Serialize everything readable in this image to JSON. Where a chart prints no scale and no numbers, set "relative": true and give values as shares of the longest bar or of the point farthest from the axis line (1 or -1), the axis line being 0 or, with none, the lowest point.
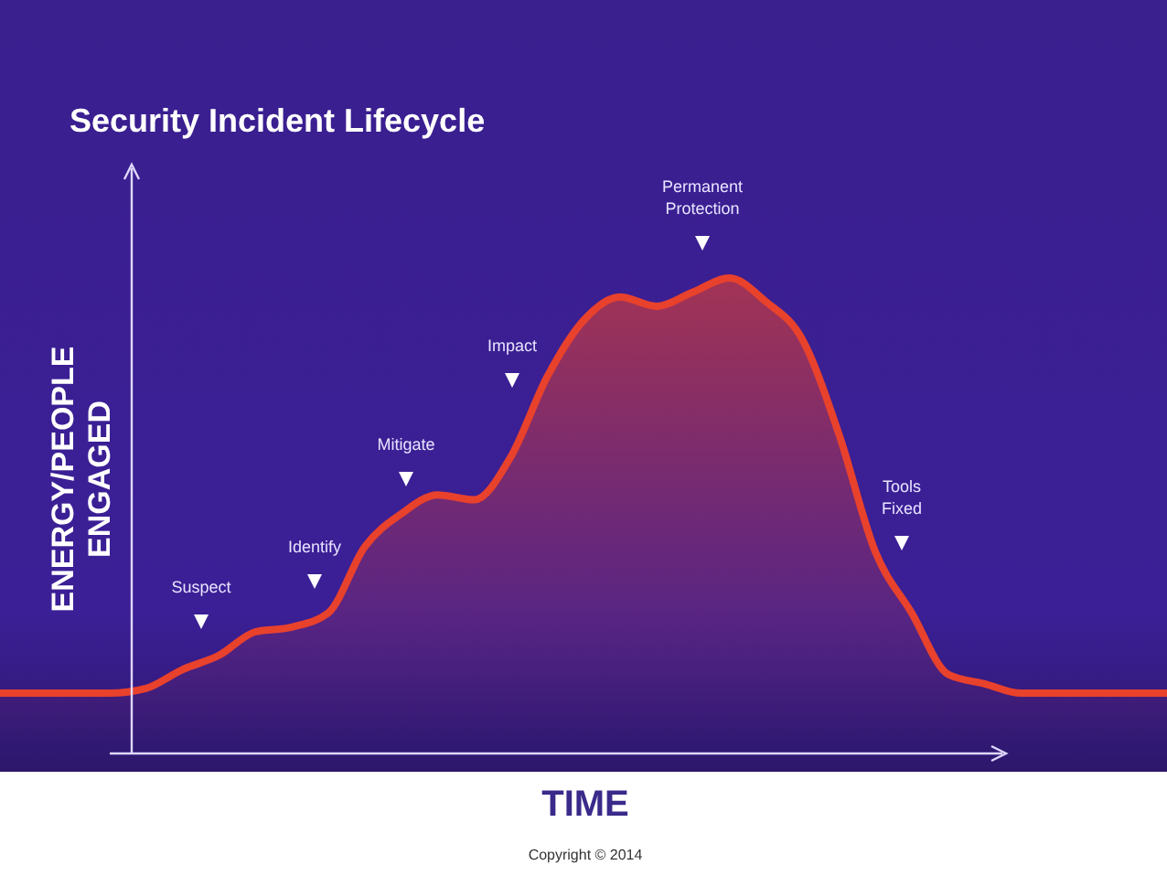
{
  "chart_data": {
    "type": "area",
    "relative": true,
    "title": "Security Incident Lifecycle",
    "xlabel": "TIME",
    "ylabel": "ENERGY/PEOPLE ENGAGED",
    "color": "#e8412c",
    "categories": [
      null,
      null,
      null,
      null,
      null,
      null,
      null,
      null,
      null,
      null,
      null,
      null,
      null,
      null,
      null,
      null,
      null,
      null,
      null,
      null,
      null,
      null,
      null,
      null,
      null,
      null,
      null,
      null,
      null,
      null,
      null,
      null,
      null
    ],
    "values": [
      0.12,
      0.12,
      0.12,
      0.12,
      0.13,
      0.17,
      0.2,
      0.25,
      0.26,
      0.29,
      0.43,
      0.5,
      0.54,
      0.53,
      0.62,
      0.79,
      0.91,
      0.96,
      0.94,
      0.97,
      1,
      0.95,
      0.87,
      0.67,
      0.42,
      0.29,
      0.16,
      0.14,
      0.12,
      0.12,
      0.12,
      0.12,
      0.12
    ],
    "annotations": [
      "Suspect",
      "Identify",
      "Mitigate",
      "Impact",
      "Permanent Protection",
      "Tools Fixed",
      "Copyright © 2014"
    ]
  }
}
